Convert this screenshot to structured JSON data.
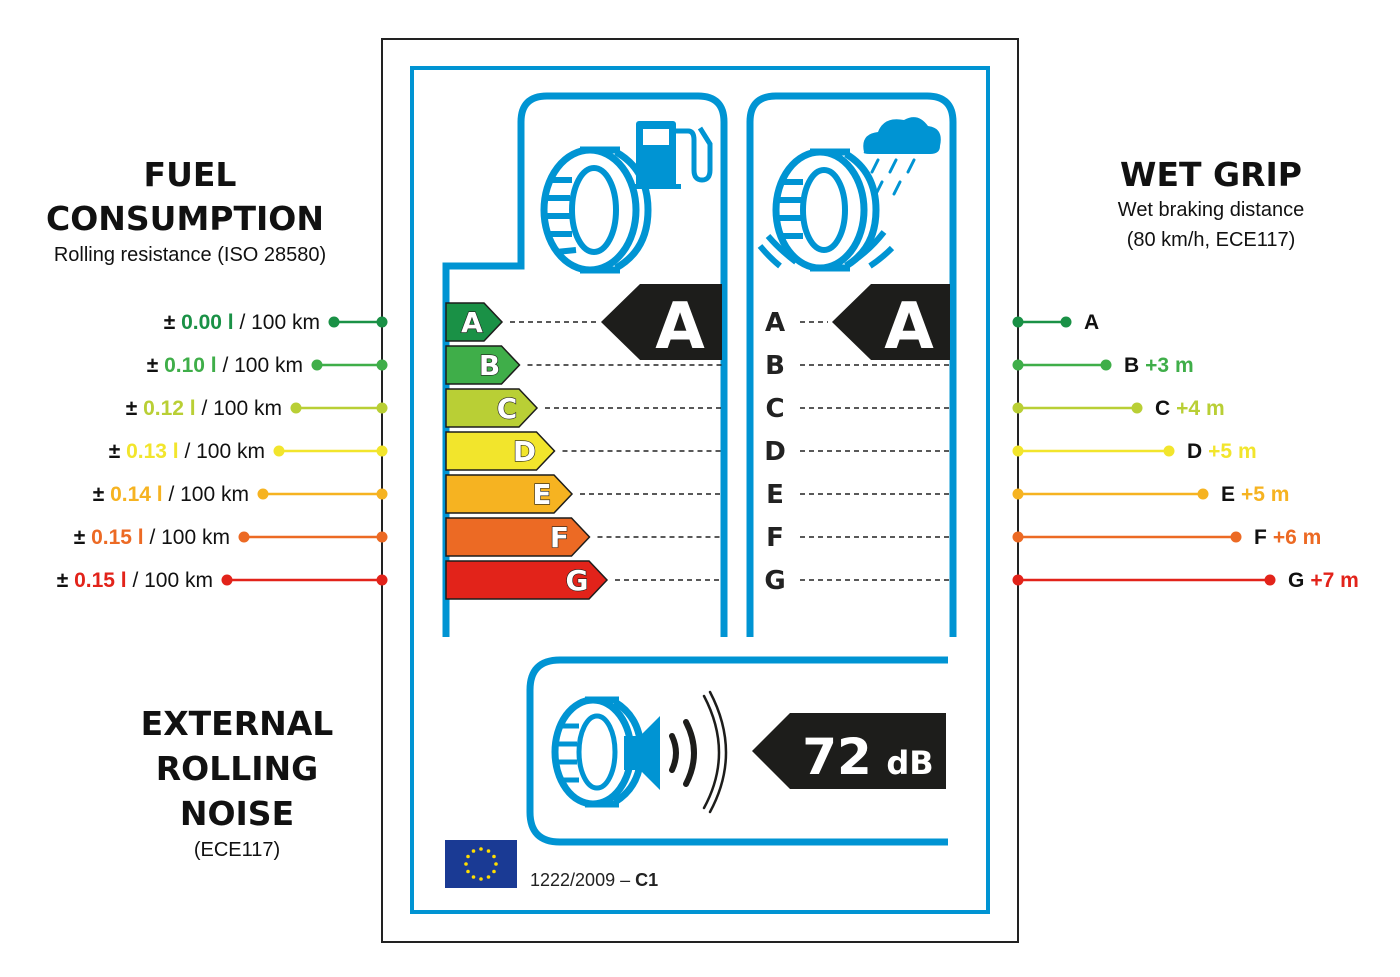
{
  "fuel": {
    "title_line1": "FUEL",
    "title_line2": "CONSUMPTION",
    "subtitle": "Rolling resistance (ISO 28580)",
    "unit": " / 100 km",
    "plusminus": "±",
    "rows": [
      {
        "value": "0.00 l",
        "color": "#1a9146"
      },
      {
        "value": "0.10 l",
        "color": "#3fae49"
      },
      {
        "value": "0.12 l",
        "color": "#b9cf35"
      },
      {
        "value": "0.13 l",
        "color": "#f2e52c"
      },
      {
        "value": "0.14 l",
        "color": "#f6b321"
      },
      {
        "value": "0.15 l",
        "color": "#ec6a24"
      },
      {
        "value": "0.15 l",
        "color": "#e2231a"
      }
    ]
  },
  "wet": {
    "title": "WET GRIP",
    "subtitle_line1": "Wet braking distance",
    "subtitle_line2": "(80 km/h, ECE117)",
    "rows": [
      {
        "letter": "A",
        "delta": ""
      },
      {
        "letter": "B",
        "delta": "+3 m"
      },
      {
        "letter": "C",
        "delta": "+4 m"
      },
      {
        "letter": "D",
        "delta": "+5 m"
      },
      {
        "letter": "E",
        "delta": "+5 m"
      },
      {
        "letter": "F",
        "delta": "+6 m"
      },
      {
        "letter": "G",
        "delta": "+7 m"
      }
    ]
  },
  "noise": {
    "title_line1": "EXTERNAL",
    "title_line2": "ROLLING",
    "title_line3": "NOISE",
    "subtitle": "(ECE117)",
    "value": "72",
    "unit": "dB"
  },
  "label": {
    "fuel_grade": "A",
    "wet_grade": "A",
    "grades": [
      "A",
      "B",
      "C",
      "D",
      "E",
      "F",
      "G"
    ],
    "regulation": "1222/2009 – ",
    "tyre_class": "C1"
  },
  "icons": [
    "fuel-pump-icon",
    "tyre-icon",
    "rain-cloud-icon",
    "sound-waves-icon",
    "eu-flag-icon"
  ],
  "colors": {
    "frame_blue": "#0094d3",
    "grades": [
      "#1a9146",
      "#3fae49",
      "#b9cf35",
      "#f2e52c",
      "#f6b321",
      "#ec6a24",
      "#e2231a"
    ],
    "arrow": "#1d1d1b"
  }
}
